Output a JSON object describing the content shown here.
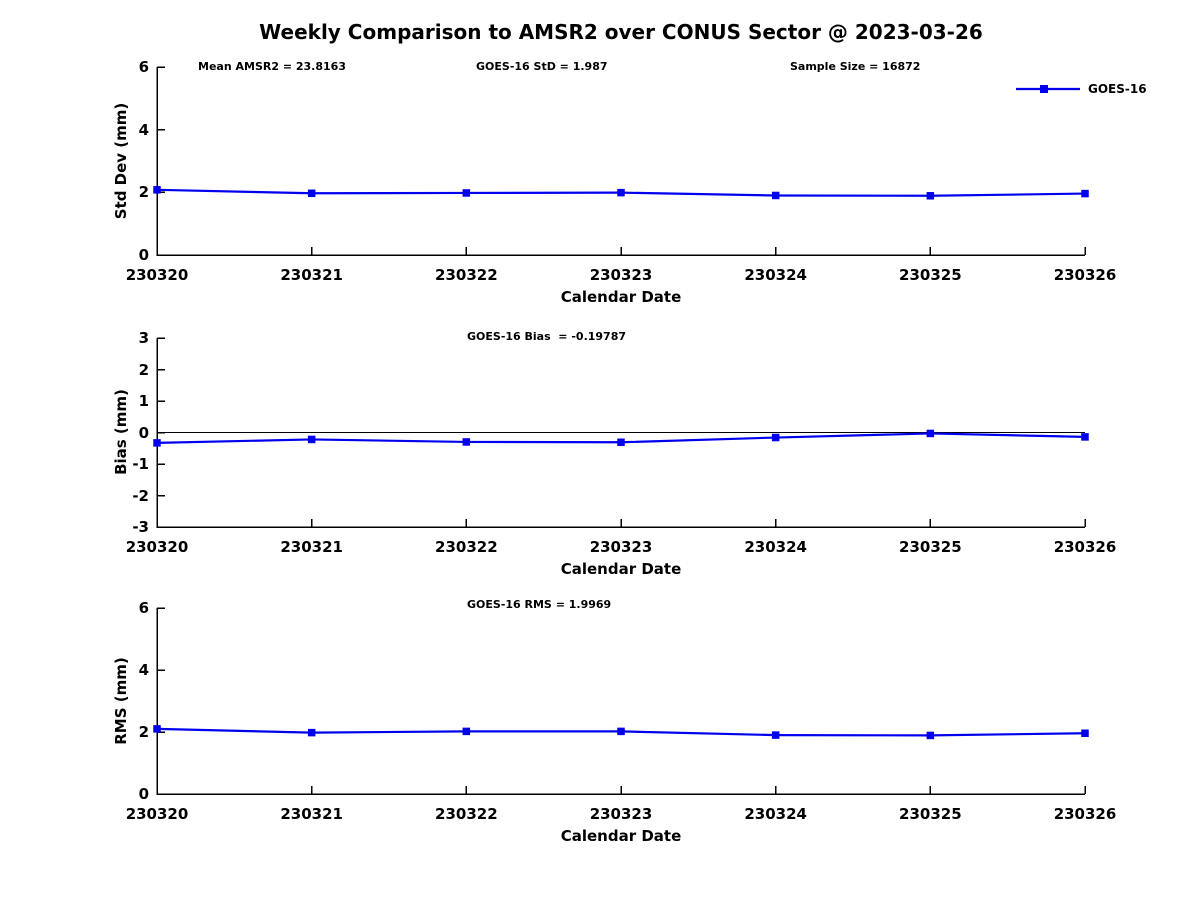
{
  "title": "Weekly Comparison to AMSR2 over CONUS Sector @ 2023-03-26",
  "legend": {
    "label": "GOES-16",
    "color": "#0000ee"
  },
  "chart_data": [
    {
      "id": "stddev",
      "type": "line",
      "annotations": [
        {
          "text": "Mean AMSR2 = 23.8163"
        },
        {
          "text": "GOES-16 StD = 1.987"
        },
        {
          "text": "Sample Size = 16872"
        }
      ],
      "categories": [
        "230320",
        "230321",
        "230322",
        "230323",
        "230324",
        "230325",
        "230326"
      ],
      "series": [
        {
          "name": "GOES-16",
          "color": "#0000ee",
          "marker": "square",
          "values": [
            2.08,
            1.97,
            1.98,
            1.99,
            1.9,
            1.89,
            1.96
          ]
        }
      ],
      "xlabel": "Calendar Date",
      "ylabel": "Std Dev (mm)",
      "ylim": [
        0,
        6
      ],
      "yticks": [
        0,
        2,
        4,
        6
      ],
      "zero_line": false,
      "grid": false,
      "legend_position": "top-right-outside"
    },
    {
      "id": "bias",
      "type": "line",
      "annotations": [
        {
          "text": "GOES-16 Bias  = -0.19787"
        }
      ],
      "categories": [
        "230320",
        "230321",
        "230322",
        "230323",
        "230324",
        "230325",
        "230326"
      ],
      "series": [
        {
          "name": "GOES-16",
          "color": "#0000ee",
          "marker": "square",
          "values": [
            -0.33,
            -0.22,
            -0.3,
            -0.31,
            -0.16,
            -0.03,
            -0.14
          ]
        }
      ],
      "xlabel": "Calendar Date",
      "ylabel": "Bias (mm)",
      "ylim": [
        -3,
        3
      ],
      "yticks": [
        -3,
        -2,
        -1,
        0,
        1,
        2,
        3
      ],
      "zero_line": true,
      "grid": false,
      "legend_position": "none"
    },
    {
      "id": "rms",
      "type": "line",
      "annotations": [
        {
          "text": "GOES-16 RMS = 1.9969"
        }
      ],
      "categories": [
        "230320",
        "230321",
        "230322",
        "230323",
        "230324",
        "230325",
        "230326"
      ],
      "series": [
        {
          "name": "GOES-16",
          "color": "#0000ee",
          "marker": "square",
          "values": [
            2.1,
            1.98,
            2.02,
            2.02,
            1.9,
            1.89,
            1.96
          ]
        }
      ],
      "xlabel": "Calendar Date",
      "ylabel": "RMS (mm)",
      "ylim": [
        0,
        6
      ],
      "yticks": [
        0,
        2,
        4,
        6
      ],
      "zero_line": false,
      "grid": false,
      "legend_position": "none"
    }
  ]
}
